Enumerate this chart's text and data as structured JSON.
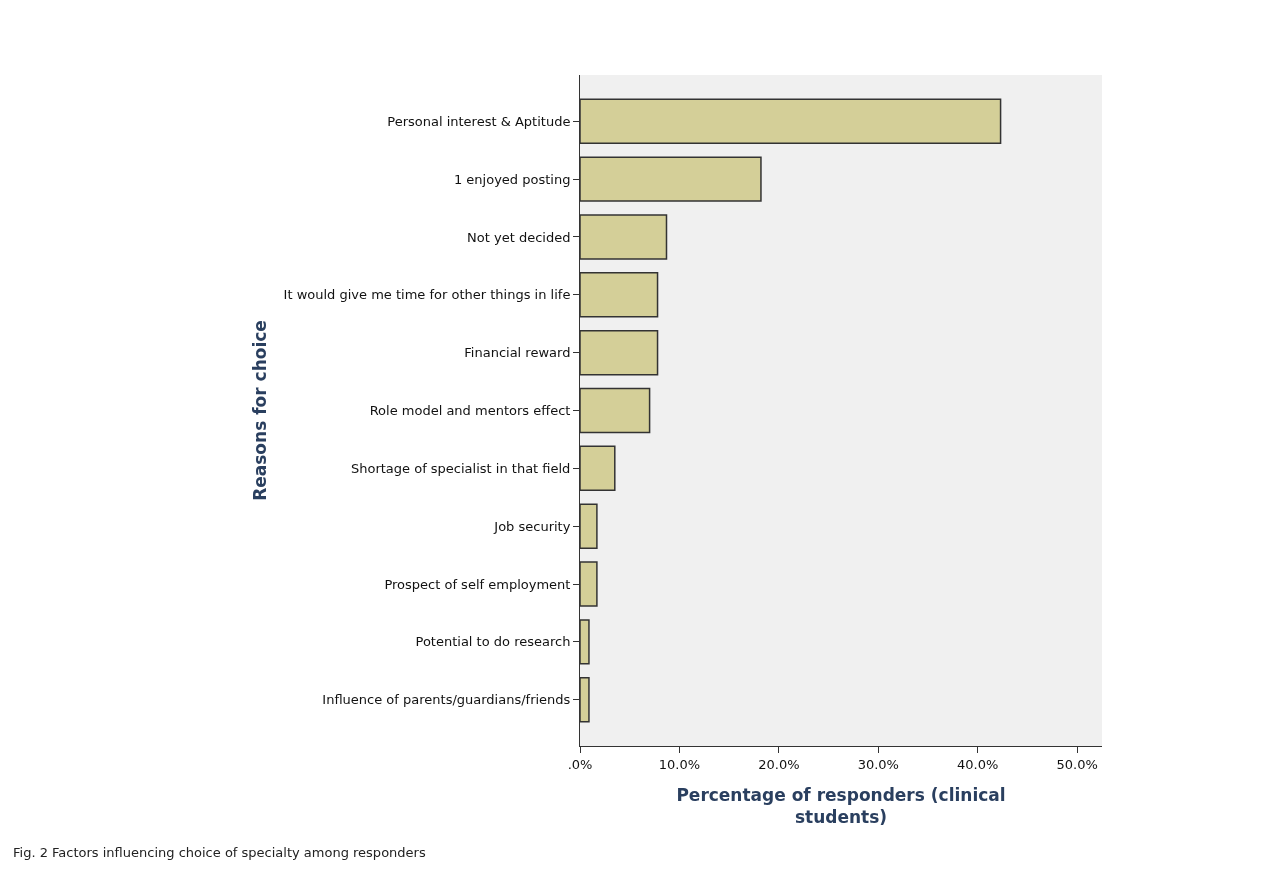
{
  "chart_data": {
    "type": "bar",
    "orientation": "horizontal",
    "categories": [
      "Personal interest & Aptitude",
      "1 enjoyed posting",
      "Not yet decided",
      "It would give me time for other things in life",
      "Financial reward",
      "Role model and mentors effect",
      "Shortage of specialist in that field",
      "Job security",
      "Prospect of self employment",
      "Potential to do research",
      "Influence of parents/guardians/friends"
    ],
    "values": [
      42.3,
      18.2,
      8.7,
      7.8,
      7.8,
      7.0,
      3.5,
      1.7,
      1.7,
      0.9,
      0.9
    ],
    "color": "#d4cf98",
    "xlim": [
      0,
      52.5
    ],
    "xticks": [
      {
        "value": 0,
        "label": ".0%"
      },
      {
        "value": 10,
        "label": "10.0%"
      },
      {
        "value": 20,
        "label": "20.0%"
      },
      {
        "value": 30,
        "label": "30.0%"
      },
      {
        "value": 40,
        "label": "40.0%"
      },
      {
        "value": 50,
        "label": "50.0%"
      }
    ],
    "xlabel": "Percentage of responders (clinical students)",
    "ylabel": "Reasons for choice",
    "annotations": [
      "Fig. 2 Factors influencing choice of specialty among responders"
    ],
    "grid": false
  }
}
